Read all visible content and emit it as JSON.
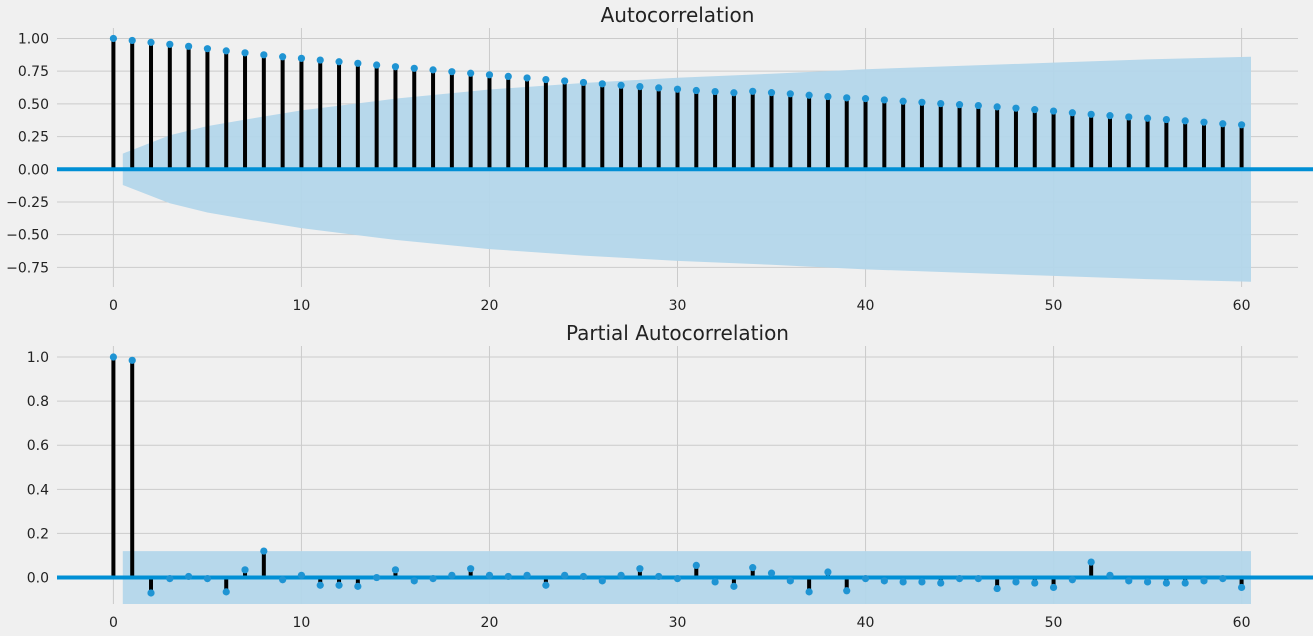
{
  "chart_data": [
    {
      "type": "stem",
      "title": "Autocorrelation",
      "xlabel": "",
      "ylabel": "",
      "xlim": [
        -3,
        63
      ],
      "ylim": [
        -0.9,
        1.08
      ],
      "xticks": [
        0,
        10,
        20,
        30,
        40,
        50,
        60
      ],
      "yticks": [
        -0.75,
        -0.5,
        -0.25,
        0.0,
        0.25,
        0.5,
        0.75,
        1.0
      ],
      "ytick_labels": [
        "−0.75",
        "−0.50",
        "−0.25",
        "0.00",
        "0.25",
        "0.50",
        "0.75",
        "1.00"
      ],
      "grid": true,
      "colors": {
        "stem": "#000000",
        "marker": "#1f94d3",
        "zero_line": "#008fd5",
        "confidence_band": "#b3d6ea"
      },
      "lags": [
        0,
        1,
        2,
        3,
        4,
        5,
        6,
        7,
        8,
        9,
        10,
        11,
        12,
        13,
        14,
        15,
        16,
        17,
        18,
        19,
        20,
        21,
        22,
        23,
        24,
        25,
        26,
        27,
        28,
        29,
        30,
        31,
        32,
        33,
        34,
        35,
        36,
        37,
        38,
        39,
        40,
        41,
        42,
        43,
        44,
        45,
        46,
        47,
        48,
        49,
        50,
        51,
        52,
        53,
        54,
        55,
        56,
        57,
        58,
        59,
        60
      ],
      "values": [
        1.0,
        0.985,
        0.97,
        0.955,
        0.94,
        0.922,
        0.905,
        0.89,
        0.875,
        0.86,
        0.848,
        0.835,
        0.822,
        0.81,
        0.797,
        0.784,
        0.772,
        0.76,
        0.746,
        0.734,
        0.722,
        0.71,
        0.698,
        0.686,
        0.675,
        0.664,
        0.653,
        0.642,
        0.632,
        0.622,
        0.612,
        0.602,
        0.594,
        0.585,
        0.596,
        0.586,
        0.577,
        0.566,
        0.556,
        0.546,
        0.54,
        0.53,
        0.52,
        0.512,
        0.502,
        0.494,
        0.487,
        0.477,
        0.467,
        0.456,
        0.445,
        0.432,
        0.42,
        0.41,
        0.4,
        0.39,
        0.38,
        0.37,
        0.36,
        0.348,
        0.34
      ],
      "confidence_band": {
        "lags": [
          0.5,
          3,
          5,
          7,
          10,
          15,
          20,
          25,
          30,
          35,
          40,
          45,
          50,
          55,
          60.5
        ],
        "upper": [
          0.12,
          0.26,
          0.33,
          0.38,
          0.45,
          0.54,
          0.61,
          0.66,
          0.7,
          0.73,
          0.765,
          0.79,
          0.815,
          0.84,
          0.86
        ],
        "lower": [
          -0.12,
          -0.26,
          -0.33,
          -0.38,
          -0.45,
          -0.54,
          -0.61,
          -0.66,
          -0.7,
          -0.73,
          -0.765,
          -0.79,
          -0.815,
          -0.84,
          -0.86
        ]
      }
    },
    {
      "type": "stem",
      "title": "Partial Autocorrelation",
      "xlabel": "",
      "ylabel": "",
      "xlim": [
        -3,
        63
      ],
      "ylim": [
        -0.12,
        1.05
      ],
      "xticks": [
        0,
        10,
        20,
        30,
        40,
        50,
        60
      ],
      "yticks": [
        0.0,
        0.2,
        0.4,
        0.6,
        0.8,
        1.0
      ],
      "ytick_labels": [
        "0.0",
        "0.2",
        "0.4",
        "0.6",
        "0.8",
        "1.0"
      ],
      "grid": true,
      "colors": {
        "stem": "#000000",
        "marker": "#1f94d3",
        "zero_line": "#008fd5",
        "confidence_band": "#b3d6ea"
      },
      "lags": [
        0,
        1,
        2,
        3,
        4,
        5,
        6,
        7,
        8,
        9,
        10,
        11,
        12,
        13,
        14,
        15,
        16,
        17,
        18,
        19,
        20,
        21,
        22,
        23,
        24,
        25,
        26,
        27,
        28,
        29,
        30,
        31,
        32,
        33,
        34,
        35,
        36,
        37,
        38,
        39,
        40,
        41,
        42,
        43,
        44,
        45,
        46,
        47,
        48,
        49,
        50,
        51,
        52,
        53,
        54,
        55,
        56,
        57,
        58,
        59,
        60
      ],
      "values": [
        1.0,
        0.985,
        -0.07,
        -0.005,
        0.005,
        -0.005,
        -0.065,
        0.035,
        0.12,
        -0.01,
        0.01,
        -0.035,
        -0.035,
        -0.04,
        0.0,
        0.035,
        -0.015,
        -0.005,
        0.01,
        0.04,
        0.01,
        0.005,
        0.01,
        -0.035,
        0.01,
        0.005,
        -0.015,
        0.01,
        0.04,
        0.005,
        -0.005,
        0.055,
        -0.02,
        -0.04,
        0.045,
        0.02,
        -0.015,
        -0.065,
        0.025,
        -0.06,
        -0.005,
        -0.015,
        -0.02,
        -0.02,
        -0.025,
        -0.005,
        -0.005,
        -0.05,
        -0.02,
        -0.025,
        -0.045,
        -0.01,
        0.07,
        0.01,
        -0.015,
        -0.02,
        -0.025,
        -0.025,
        -0.015,
        -0.005,
        -0.045
      ],
      "confidence_band": {
        "lags": [
          0.5,
          60.5
        ],
        "upper": [
          0.12,
          0.12
        ],
        "lower": [
          -0.12,
          -0.12
        ]
      }
    }
  ]
}
